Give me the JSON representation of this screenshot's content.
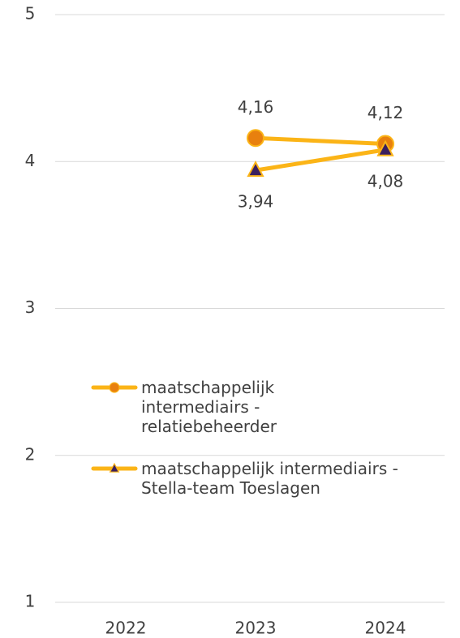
{
  "chart_data": {
    "type": "line",
    "categories": [
      "2022",
      "2023",
      "2024"
    ],
    "series": [
      {
        "name": "maatschappelijk intermediairs - relatiebeheerder",
        "color": "#fbb417",
        "marker": "circle",
        "marker_color": "#e8800e",
        "values": [
          null,
          4.16,
          4.12
        ],
        "value_labels": [
          null,
          "4,16",
          "4,12"
        ]
      },
      {
        "name": "maatschappelijk intermediairs - Stella-team Toeslagen",
        "color": "#fbb417",
        "marker": "triangle",
        "marker_color": "#3b1f5e",
        "values": [
          null,
          3.94,
          4.08
        ],
        "value_labels": [
          null,
          "3,94",
          "4,08"
        ]
      }
    ],
    "ylim": [
      1,
      5
    ],
    "yticks": [
      1,
      2,
      3,
      4,
      5
    ],
    "grid": true
  }
}
